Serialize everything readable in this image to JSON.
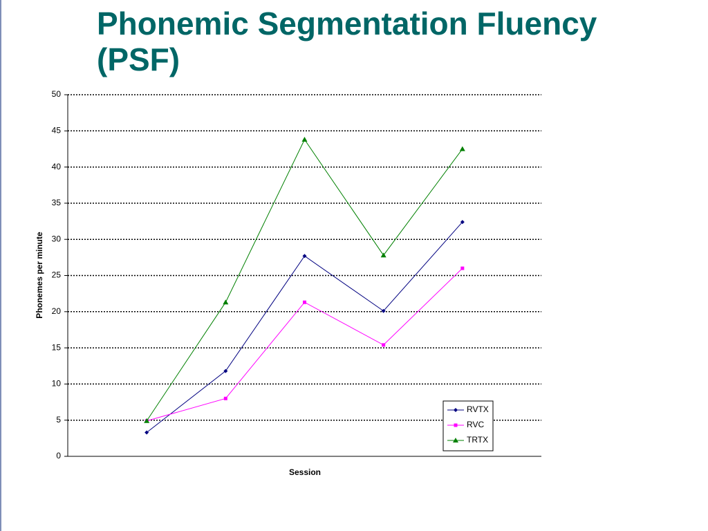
{
  "chart_data": {
    "type": "line",
    "title": "Phonemic Segmentation Fluency (PSF)",
    "x_label": "Session",
    "y_label": "Phonemes per minute",
    "categories": [
      null,
      null,
      null,
      null,
      null
    ],
    "series": [
      {
        "name": "RVTX",
        "color": "#000080",
        "marker": "diamond",
        "values": [
          3.3,
          11.8,
          27.7,
          20.1,
          32.4
        ]
      },
      {
        "name": "RVC",
        "color": "#ff00ff",
        "marker": "square",
        "values": [
          4.9,
          8.0,
          21.3,
          15.4,
          26.0
        ]
      },
      {
        "name": "TRTX",
        "color": "#008000",
        "marker": "triangle",
        "values": [
          4.9,
          21.3,
          43.8,
          27.8,
          42.5
        ]
      }
    ],
    "ylim": [
      0,
      50
    ],
    "yticks": [
      0,
      5,
      10,
      15,
      20,
      25,
      30,
      35,
      40,
      45,
      50
    ],
    "grid": true,
    "legend": "lower right"
  }
}
